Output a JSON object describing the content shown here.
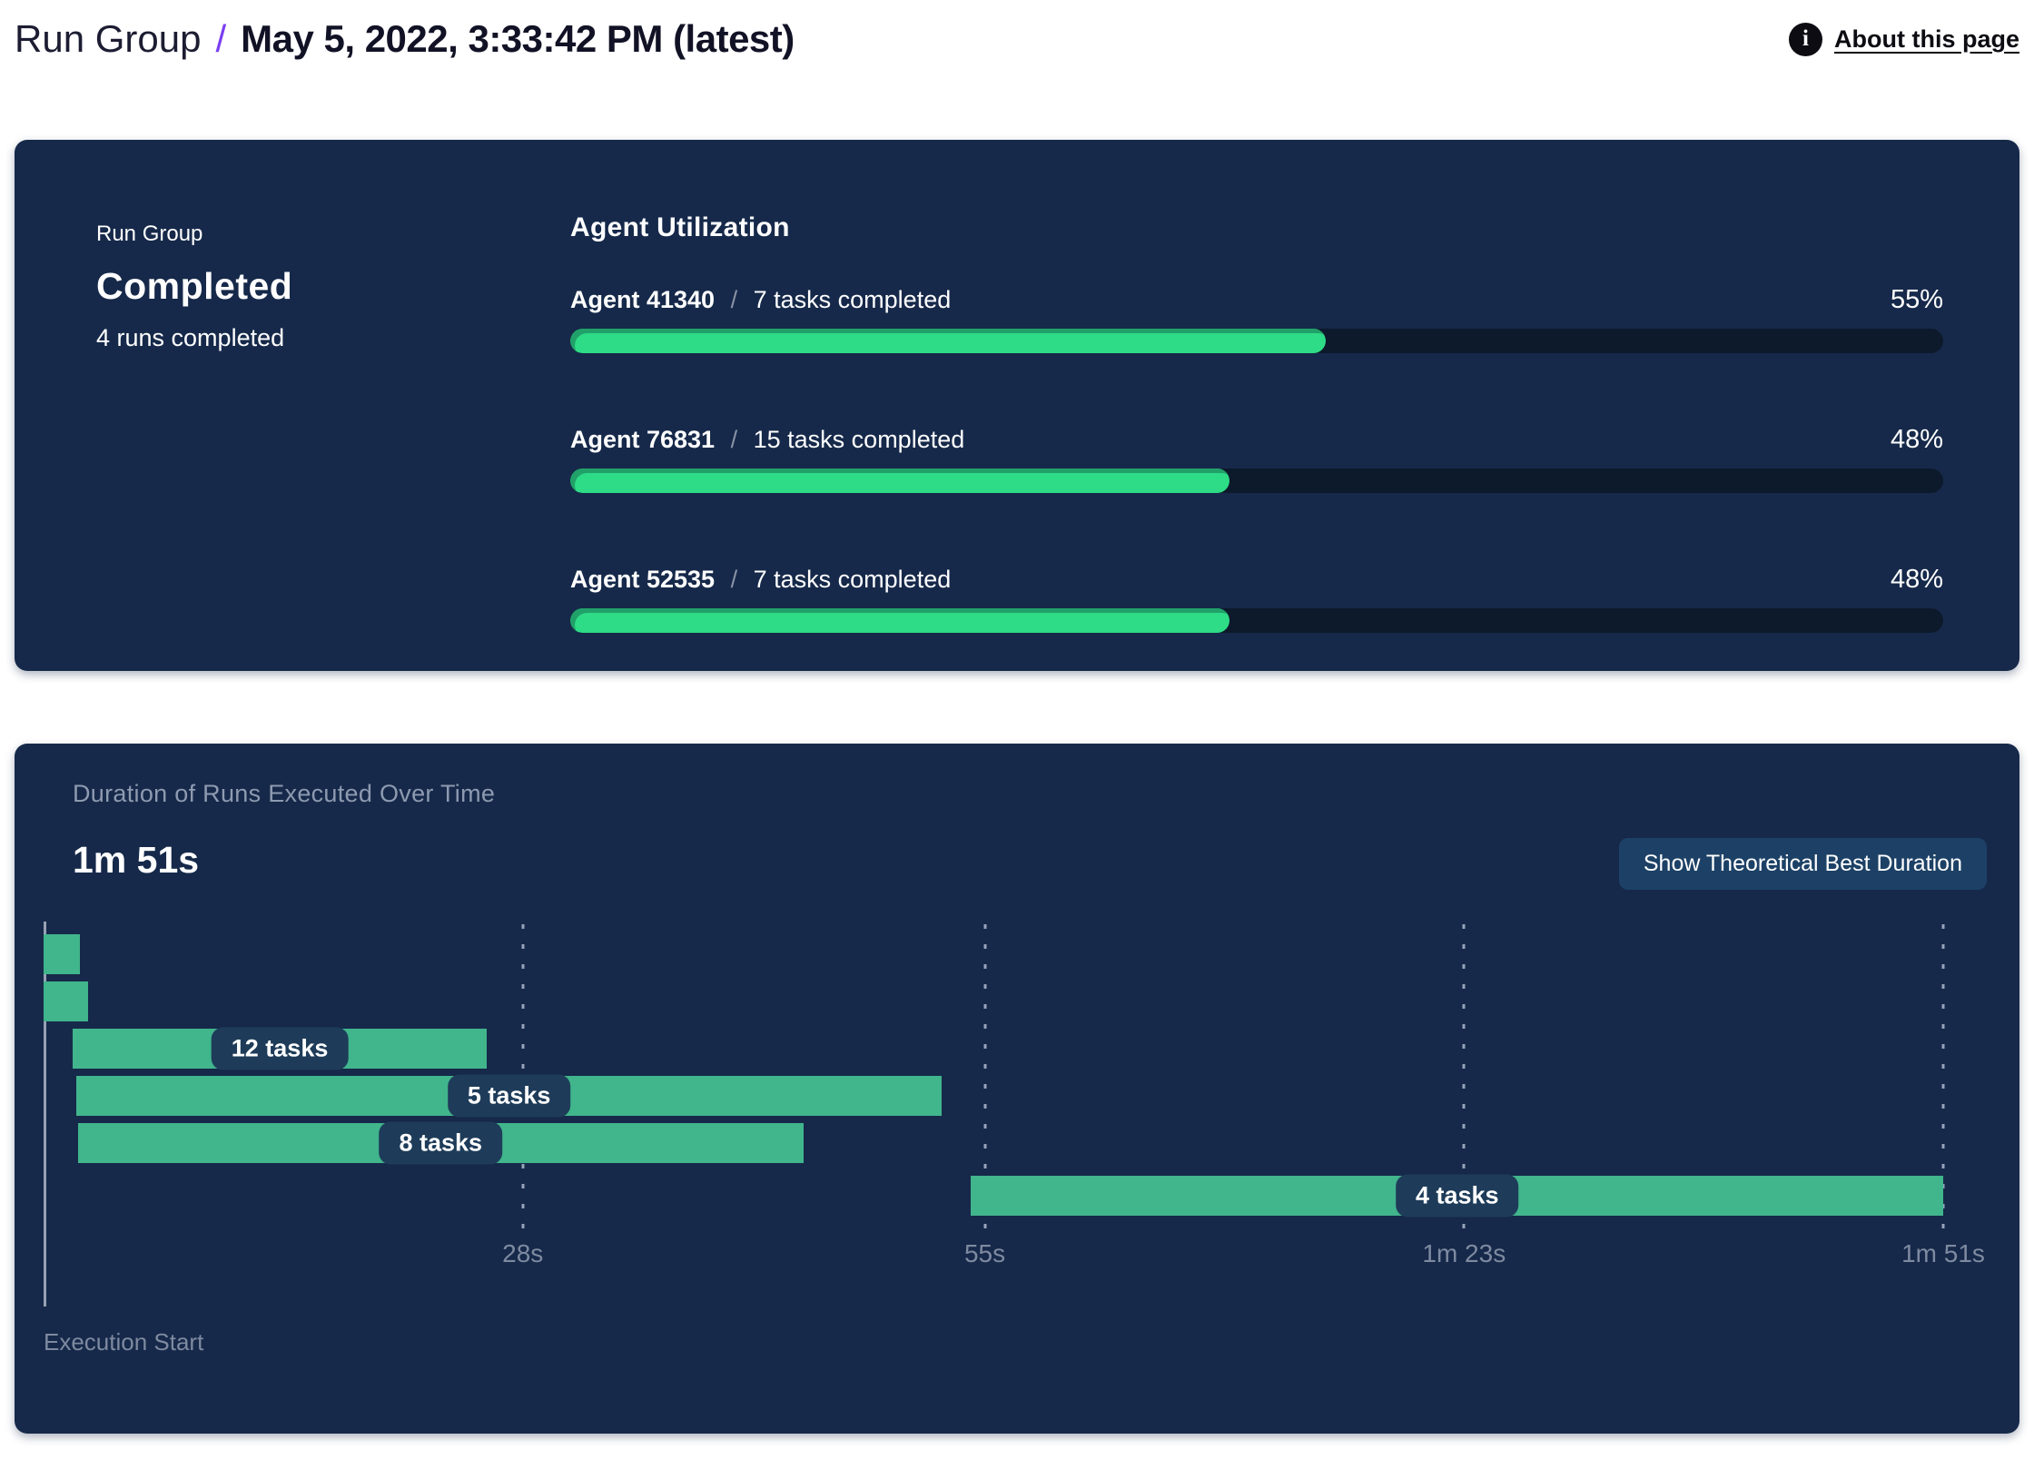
{
  "header": {
    "breadcrumb_root": "Run Group",
    "separator": "/",
    "title": "May 5, 2022, 3:33:42 PM (latest)",
    "about": {
      "label": "About this page",
      "icon": "i"
    }
  },
  "status_card": {
    "eyebrow": "Run Group",
    "status": "Completed",
    "detail": "4 runs completed"
  },
  "agent_utilization": {
    "title": "Agent Utilization",
    "separator": "/",
    "agents": [
      {
        "name": "Agent 41340",
        "tasks": "7 tasks completed",
        "percent": 55,
        "percent_label": "55%"
      },
      {
        "name": "Agent 76831",
        "tasks": "15 tasks completed",
        "percent": 48,
        "percent_label": "48%"
      },
      {
        "name": "Agent 52535",
        "tasks": "7 tasks completed",
        "percent": 48,
        "percent_label": "48%"
      }
    ]
  },
  "duration_card": {
    "title": "Duration of Runs Executed Over Time",
    "total_duration": "1m 51s",
    "button_label": "Show Theoretical Best Duration",
    "execution_start_label": "Execution Start"
  },
  "chart_data": {
    "type": "gantt",
    "title": "Duration of Runs Executed Over Time",
    "total_duration_label": "1m 51s",
    "xlabel": "Execution Start",
    "x_unit": "seconds",
    "xlim": [
      0,
      111
    ],
    "grid": "dashed-vertical",
    "legend": "none",
    "x_ticks": [
      {
        "label": "28s",
        "s": 28
      },
      {
        "label": "55s",
        "s": 55
      },
      {
        "label": "1m 23s",
        "s": 83
      },
      {
        "label": "1m 51s",
        "s": 111
      }
    ],
    "runs": [
      {
        "label": "",
        "start_s": 0,
        "end_s": 2.1
      },
      {
        "label": "",
        "start_s": 0,
        "end_s": 2.6
      },
      {
        "label": "12 tasks",
        "start_s": 1.7,
        "end_s": 25.9
      },
      {
        "label": "5 tasks",
        "start_s": 1.9,
        "end_s": 52.5
      },
      {
        "label": "8 tasks",
        "start_s": 2.0,
        "end_s": 44.4
      },
      {
        "label": "4 tasks",
        "start_s": 54.2,
        "end_s": 111
      }
    ]
  },
  "colors": {
    "accent_purple": "#7b3ff2",
    "card_bg": "#16294a",
    "track_bg": "#0d1a2b",
    "progress_green": "#2edb86",
    "progress_green_shadow": "#21a169",
    "gantt_green": "#41b58c",
    "pill_bg": "#1e3c59",
    "button_bg": "#1d4166",
    "muted_text": "#8e9ab0",
    "tick_text": "#7e8aa0"
  }
}
